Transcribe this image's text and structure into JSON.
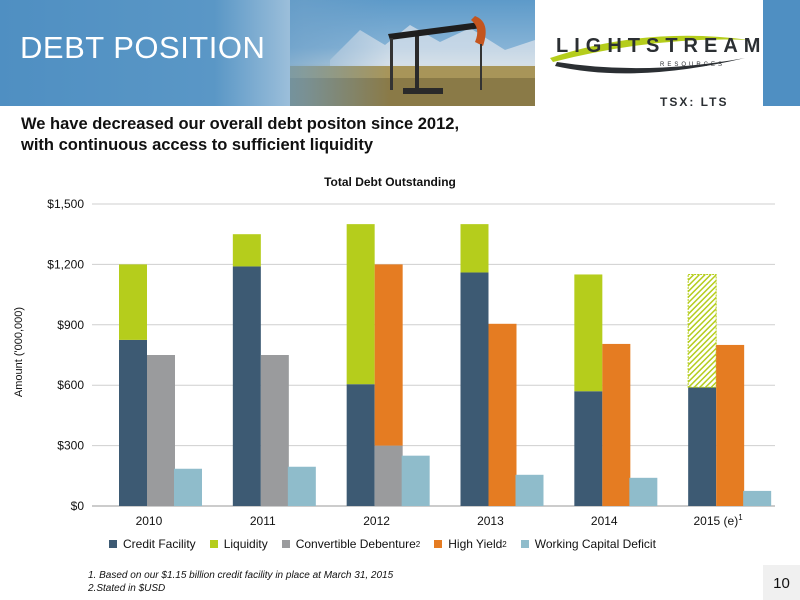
{
  "slide": {
    "title": "DEBT POSITION",
    "subtitle_line1": "We have decreased our overall debt positon since 2012,",
    "subtitle_line2": "with continuous access to sufficient liquidity",
    "logo_word": "LIGHTSTREAM",
    "logo_sub": "RESOURCES",
    "ticker": "TSX: LTS",
    "footnote_1": "1. Based on our $1.15 billion credit facility in place at March 31, 2015",
    "footnote_2": "2.Stated  in $USD",
    "page_number": "10"
  },
  "colors": {
    "credit_facility": "#3d5a73",
    "liquidity": "#b5cd1c",
    "convertible": "#9a9b9d",
    "high_yield": "#e57c22",
    "working_capital": "#8fbccb",
    "header_blue": "#4f8fc2"
  },
  "legend": {
    "credit_facility": "Credit Facility",
    "liquidity": "Liquidity",
    "convertible": "Convertible Debenture",
    "convertible_sup": "2",
    "high_yield": "High Yield",
    "high_yield_sup": "2",
    "working_capital": "Working Capital Deficit"
  },
  "chart_data": {
    "type": "bar",
    "title": "Total Debt Outstanding",
    "ylabel": "Amount ('000,000)",
    "xlabel": "",
    "ylim": [
      0,
      1500
    ],
    "yticks": [
      "$0",
      "$300",
      "$600",
      "$900",
      "$1,200",
      "$1,500"
    ],
    "ytick_values": [
      0,
      300,
      600,
      900,
      1200,
      1500
    ],
    "grid": true,
    "legend_position": "bottom",
    "categories": [
      "2010",
      "2011",
      "2012",
      "2013",
      "2014",
      "2015 (e)"
    ],
    "category_superscripts": [
      "",
      "",
      "",
      "",
      "",
      "1"
    ],
    "stacks": [
      {
        "name": "Credit Facility + Liquidity",
        "segments": [
          {
            "name": "Credit Facility",
            "values": [
              825,
              1190,
              605,
              1160,
              570,
              590
            ]
          },
          {
            "name": "Liquidity",
            "values": [
              375,
              160,
              795,
              240,
              580,
              560
            ]
          }
        ],
        "hatched_index": 5
      },
      {
        "name": "Convertible Debenture + High Yield",
        "segments": [
          {
            "name": "Convertible Debenture",
            "values": [
              750,
              750,
              300,
              0,
              0,
              0
            ]
          },
          {
            "name": "High Yield",
            "values": [
              0,
              0,
              900,
              905,
              805,
              800
            ]
          }
        ]
      },
      {
        "name": "Working Capital Deficit",
        "segments": [
          {
            "name": "Working Capital Deficit",
            "values": [
              185,
              195,
              250,
              155,
              140,
              75
            ]
          }
        ]
      }
    ]
  }
}
